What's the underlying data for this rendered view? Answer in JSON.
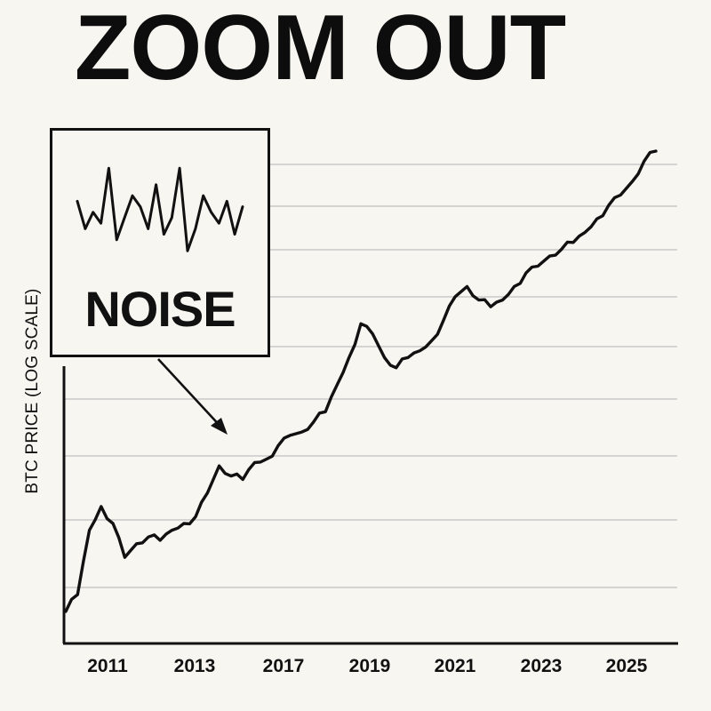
{
  "chart_data": {
    "type": "line",
    "title": "ZOOM OUT",
    "xlabel": "",
    "ylabel": "BTC PRICE (LOG SCALE)",
    "y_scale": "log",
    "x_tick_labels": [
      "2011",
      "2013",
      "2017",
      "2019",
      "2021",
      "2023",
      "2025"
    ],
    "y_tick_labels": [],
    "grid": "horizontal",
    "line_color": "#111111",
    "series": [
      {
        "x": [
          0.0,
          0.2,
          0.4,
          0.6,
          0.8,
          1.0,
          1.2,
          1.4,
          1.6,
          1.8,
          2.0,
          2.2,
          2.4,
          2.6,
          2.8,
          3.0,
          3.2,
          3.4,
          3.6,
          3.8,
          4.0,
          4.2,
          4.4,
          4.6,
          4.8,
          5.0,
          5.2,
          5.4,
          5.6,
          5.8,
          6.0,
          6.2,
          6.4,
          6.6,
          6.8,
          7.0,
          7.2,
          7.4,
          7.6,
          7.8,
          8.0,
          8.2,
          8.4,
          8.6,
          8.8,
          9.0,
          9.2,
          9.4,
          9.6,
          9.8,
          10.0
        ],
        "y": [
          0.0,
          0.5,
          2.4,
          3.1,
          2.6,
          1.6,
          2.0,
          2.2,
          2.1,
          2.4,
          2.6,
          2.8,
          3.5,
          4.3,
          4.0,
          3.9,
          4.4,
          4.5,
          4.9,
          5.2,
          5.3,
          5.6,
          5.9,
          6.7,
          7.5,
          8.5,
          8.2,
          7.5,
          7.2,
          7.5,
          7.7,
          8.0,
          8.6,
          9.3,
          9.6,
          9.2,
          9.0,
          9.2,
          9.6,
          10.0,
          10.2,
          10.5,
          10.7,
          10.9,
          11.2,
          11.6,
          12.0,
          12.3,
          12.7,
          13.3,
          13.6
        ]
      }
    ],
    "annotations": [
      {
        "text": "NOISE",
        "style": "boxed inset with zig-zag line and arrow pointing to the chart line"
      }
    ]
  },
  "inset": {
    "label": "NOISE",
    "wave": [
      0.3,
      -0.2,
      0.1,
      -0.1,
      0.9,
      -0.4,
      0.0,
      0.4,
      0.2,
      -0.2,
      0.6,
      -0.3,
      0.0,
      0.9,
      -0.6,
      -0.2,
      0.4,
      0.1,
      -0.1,
      0.3,
      -0.3,
      0.2
    ]
  }
}
